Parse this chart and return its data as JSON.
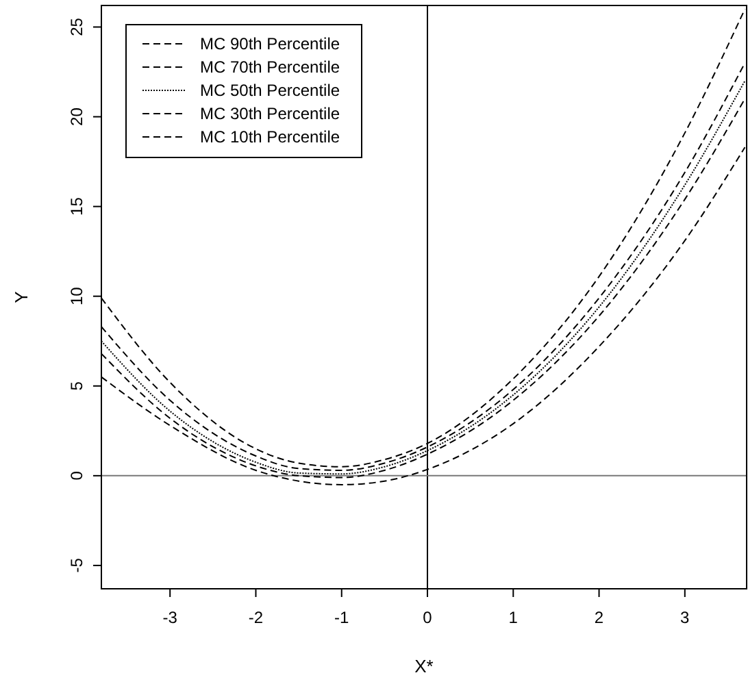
{
  "chart_data": {
    "type": "line",
    "xlabel": "X*",
    "ylabel": "Y",
    "x": [
      -3.8,
      -3,
      -2,
      -1.5,
      -1,
      -0.5,
      0,
      1,
      2,
      3,
      3.7
    ],
    "series": [
      {
        "name": "MC 90th Percentile",
        "color": "#000000",
        "line_style": "dashed",
        "values": [
          9.9,
          5.2,
          1.5,
          0.7,
          0.5,
          0.9,
          1.8,
          5.4,
          11.1,
          19.1,
          26.0
        ]
      },
      {
        "name": "MC 70th Percentile",
        "color": "#000000",
        "line_style": "dashed",
        "values": [
          8.3,
          4.2,
          1.1,
          0.4,
          0.3,
          0.7,
          1.6,
          4.8,
          9.9,
          16.9,
          23.0
        ]
      },
      {
        "name": "MC 50th Percentile",
        "color": "#000000",
        "line_style": "dotted",
        "values": [
          7.5,
          3.6,
          0.75,
          0.15,
          0.1,
          0.5,
          1.4,
          4.5,
          9.4,
          16.2,
          22.0
        ]
      },
      {
        "name": "MC 30th Percentile",
        "color": "#000000",
        "line_style": "dashed",
        "values": [
          6.8,
          3.2,
          0.55,
          0,
          -0.1,
          0.3,
          1.2,
          4.2,
          8.9,
          15.4,
          21.0
        ]
      },
      {
        "name": "MC 10th Percentile",
        "color": "#000000",
        "line_style": "dashed",
        "values": [
          5.5,
          2.8,
          0.3,
          -0.3,
          -0.5,
          -0.3,
          0.35,
          2.9,
          7.2,
          13.1,
          18.3
        ]
      }
    ],
    "xlim": [
      -3.8,
      3.72
    ],
    "ylim": [
      -6.3,
      26.2
    ],
    "xticks": [
      -3,
      -2,
      -1,
      0,
      1,
      2,
      3
    ],
    "yticks": [
      -5,
      0,
      5,
      10,
      15,
      20,
      25
    ],
    "ref_lines": [
      {
        "axis": "x",
        "value": 0,
        "color": "#000000"
      },
      {
        "axis": "y",
        "value": 0,
        "color": "#777777"
      }
    ],
    "legend": "top left",
    "grid": false,
    "marker": "none"
  }
}
